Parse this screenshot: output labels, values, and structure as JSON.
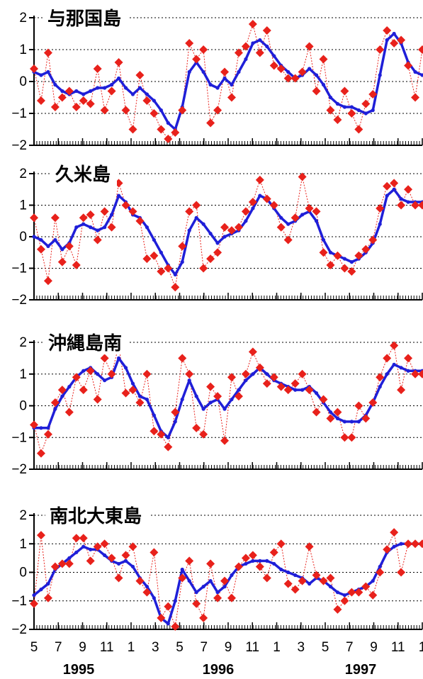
{
  "chart_data": [
    {
      "type": "line",
      "title": "与那国島",
      "ylim": [
        -2,
        2
      ],
      "yticks": [
        "2",
        "1",
        "0",
        "−1",
        "−2"
      ],
      "grid": "dotted horizontal",
      "series": [
        {
          "values": [
            0.3,
            0.2,
            0.3,
            -0.1,
            -0.3,
            -0.4,
            -0.3,
            -0.4,
            -0.3,
            -0.2,
            -0.2,
            -0.1,
            0.1,
            -0.2,
            -0.4,
            -0.2,
            -0.4,
            -0.6,
            -0.9,
            -1.3,
            -1.5,
            -0.8,
            0.3,
            0.6,
            0.3,
            -0.1,
            -0.2,
            0.1,
            -0.1,
            0.3,
            0.7,
            1.2,
            1.3,
            1.1,
            0.8,
            0.5,
            0.3,
            0.1,
            0.2,
            0.4,
            0.2,
            -0.1,
            -0.5,
            -0.7,
            -0.8,
            -0.8,
            -0.9,
            -1.0,
            -0.9,
            0.2,
            1.3,
            1.5,
            1.2,
            0.6,
            0.3,
            0.2
          ]
        },
        {
          "values": [
            0.4,
            -0.6,
            0.9,
            -0.8,
            -0.5,
            -0.3,
            -0.8,
            -0.6,
            -0.7,
            0.4,
            -0.9,
            -0.3,
            0.6,
            -0.9,
            -1.5,
            0.2,
            -0.6,
            -1.0,
            -1.5,
            -1.8,
            -1.6,
            -0.9,
            1.2,
            0.7,
            1.0,
            -1.3,
            -0.9,
            0.3,
            -0.5,
            0.9,
            1.1,
            1.8,
            0.9,
            1.6,
            0.5,
            0.4,
            0.1,
            0.1,
            0.3,
            1.1,
            -0.3,
            0.7,
            -0.9,
            -1.2,
            -0.3,
            -1.0,
            -1.5,
            -0.7,
            -0.4,
            1.0,
            1.6,
            1.2,
            1.3,
            0.5,
            -0.5,
            1.0
          ]
        }
      ]
    },
    {
      "type": "line",
      "title": "久米島",
      "ylim": [
        -2,
        2
      ],
      "yticks": [
        "2",
        "1",
        "0",
        "−1",
        "−2"
      ],
      "grid": "dotted horizontal",
      "series": [
        {
          "values": [
            0.0,
            -0.1,
            -0.3,
            -0.1,
            -0.4,
            -0.2,
            0.3,
            0.4,
            0.3,
            0.2,
            0.3,
            0.7,
            1.3,
            1.1,
            0.7,
            0.6,
            0.3,
            -0.1,
            -0.5,
            -0.9,
            -1.2,
            -0.8,
            0.2,
            0.6,
            0.4,
            0.1,
            -0.2,
            0.0,
            0.1,
            0.2,
            0.5,
            0.9,
            1.3,
            1.2,
            0.9,
            0.6,
            0.4,
            0.5,
            0.7,
            0.8,
            0.5,
            -0.1,
            -0.5,
            -0.6,
            -0.7,
            -0.8,
            -0.7,
            -0.5,
            -0.2,
            0.4,
            1.3,
            1.5,
            1.2,
            1.1,
            1.1,
            1.1
          ]
        },
        {
          "values": [
            0.6,
            -0.4,
            -1.4,
            0.6,
            -0.8,
            -0.3,
            -0.9,
            0.6,
            0.7,
            -0.1,
            0.8,
            0.3,
            1.7,
            1.0,
            0.8,
            0.5,
            -0.7,
            -0.6,
            -1.1,
            -1.0,
            -1.6,
            -0.3,
            0.8,
            1.0,
            -1.0,
            -0.7,
            -0.5,
            0.3,
            0.2,
            0.3,
            0.8,
            1.1,
            1.8,
            1.2,
            1.0,
            0.3,
            -0.1,
            0.6,
            1.9,
            0.9,
            0.8,
            -0.5,
            -0.9,
            -0.6,
            -1.0,
            -1.1,
            -0.6,
            -0.4,
            -0.1,
            0.9,
            1.6,
            1.7,
            1.0,
            1.5,
            1.0,
            1.0
          ]
        }
      ]
    },
    {
      "type": "line",
      "title": "沖縄島南",
      "ylim": [
        -2,
        2
      ],
      "yticks": [
        "2",
        "1",
        "0",
        "−1",
        "−2"
      ],
      "grid": "dotted horizontal",
      "series": [
        {
          "values": [
            -0.7,
            -0.7,
            -0.7,
            -0.1,
            0.3,
            0.6,
            0.9,
            1.1,
            1.2,
            1.0,
            0.8,
            0.9,
            1.5,
            1.2,
            0.7,
            0.3,
            0.2,
            -0.3,
            -0.8,
            -1.0,
            -0.5,
            0.2,
            0.8,
            0.3,
            -0.1,
            0.1,
            0.2,
            -0.1,
            0.2,
            0.5,
            0.8,
            1.0,
            1.2,
            1.0,
            0.8,
            0.7,
            0.6,
            0.5,
            0.5,
            0.6,
            0.4,
            0.1,
            -0.2,
            -0.4,
            -0.5,
            -0.5,
            -0.5,
            -0.3,
            0.1,
            0.6,
            1.0,
            1.3,
            1.2,
            1.1,
            1.1,
            1.1
          ]
        },
        {
          "values": [
            -0.6,
            -1.5,
            -0.9,
            0.1,
            0.5,
            -0.2,
            0.9,
            0.5,
            1.1,
            0.2,
            1.5,
            1.0,
            1.9,
            0.4,
            0.5,
            0.1,
            1.0,
            -0.8,
            -0.9,
            -1.3,
            -0.2,
            1.5,
            1.0,
            -0.7,
            -0.9,
            0.6,
            0.3,
            -1.1,
            0.9,
            0.3,
            1.0,
            1.7,
            1.2,
            0.7,
            0.9,
            0.6,
            0.5,
            0.7,
            1.0,
            0.5,
            -0.2,
            0.2,
            -0.4,
            -0.2,
            -1.0,
            -1.0,
            0.0,
            -0.4,
            0.1,
            0.9,
            1.5,
            1.9,
            0.5,
            1.5,
            1.0,
            1.0
          ]
        }
      ]
    },
    {
      "type": "line",
      "title": "南北大東島",
      "ylim": [
        -2,
        2
      ],
      "yticks": [
        "2",
        "1",
        "0",
        "−1",
        "−2"
      ],
      "grid": "dotted horizontal",
      "series": [
        {
          "values": [
            -0.8,
            -0.6,
            -0.4,
            0.1,
            0.3,
            0.5,
            0.7,
            0.9,
            0.8,
            0.8,
            0.6,
            0.4,
            0.3,
            0.4,
            0.2,
            -0.2,
            -0.5,
            -0.9,
            -1.6,
            -1.8,
            -1.0,
            0.1,
            -0.3,
            -0.7,
            -0.5,
            -0.3,
            -0.7,
            -0.5,
            -0.1,
            0.2,
            0.3,
            0.4,
            0.4,
            0.4,
            0.3,
            0.1,
            0.0,
            -0.1,
            -0.2,
            -0.4,
            -0.2,
            -0.3,
            -0.5,
            -0.7,
            -0.8,
            -0.7,
            -0.6,
            -0.5,
            -0.3,
            0.2,
            0.7,
            0.9,
            1.0,
            1.0,
            1.0,
            1.0
          ]
        },
        {
          "values": [
            -1.1,
            1.3,
            -0.9,
            0.2,
            0.3,
            0.3,
            1.2,
            1.2,
            0.4,
            0.9,
            1.0,
            0.5,
            -0.2,
            0.6,
            0.9,
            -0.3,
            -0.7,
            0.7,
            -1.6,
            -1.2,
            -1.9,
            -0.2,
            0.4,
            -1.1,
            -1.6,
            0.3,
            -0.9,
            -0.3,
            -0.9,
            0.2,
            0.5,
            0.6,
            0.2,
            -0.2,
            0.7,
            1.0,
            -0.4,
            -0.6,
            -0.3,
            0.9,
            -0.1,
            -0.3,
            -0.2,
            -1.3,
            -1.0,
            -0.7,
            -0.7,
            -0.5,
            -0.8,
            0.0,
            0.8,
            1.4,
            0.0,
            1.0,
            1.0,
            1.0
          ]
        }
      ]
    }
  ],
  "x_axis": {
    "tick_labels": [
      "5",
      "7",
      "9",
      "11",
      "1",
      "3",
      "5",
      "7",
      "9",
      "11",
      "1",
      "3",
      "5",
      "7",
      "9",
      "11",
      "1"
    ],
    "year_labels": [
      "1995",
      "1996",
      "1997"
    ]
  }
}
